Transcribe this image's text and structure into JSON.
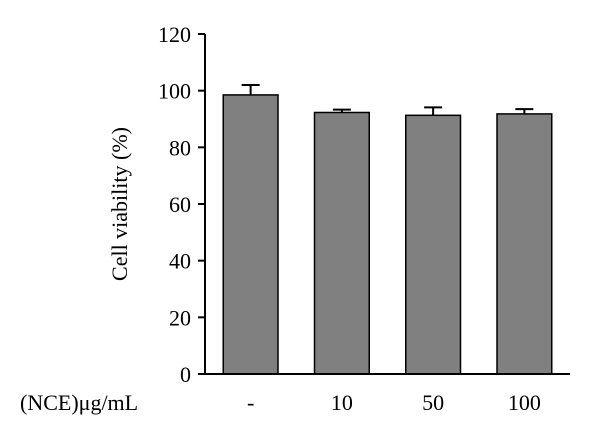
{
  "chart_data": {
    "type": "bar",
    "title": "",
    "xlabel": "(NCE)μg/mL",
    "ylabel": "Cell viability (%)",
    "categories": [
      "-",
      "10",
      "50",
      "100"
    ],
    "values": [
      98.5,
      92.3,
      91.3,
      91.8
    ],
    "error_bars": [
      3.5,
      1.0,
      2.8,
      1.7
    ],
    "ylim": [
      0,
      120
    ],
    "yticks": [
      0,
      20,
      40,
      60,
      80,
      100,
      120
    ],
    "grid": false,
    "legend": "none",
    "colors": {
      "bar_fill": "#808080",
      "bar_stroke": "#000000",
      "axis": "#000000"
    }
  }
}
